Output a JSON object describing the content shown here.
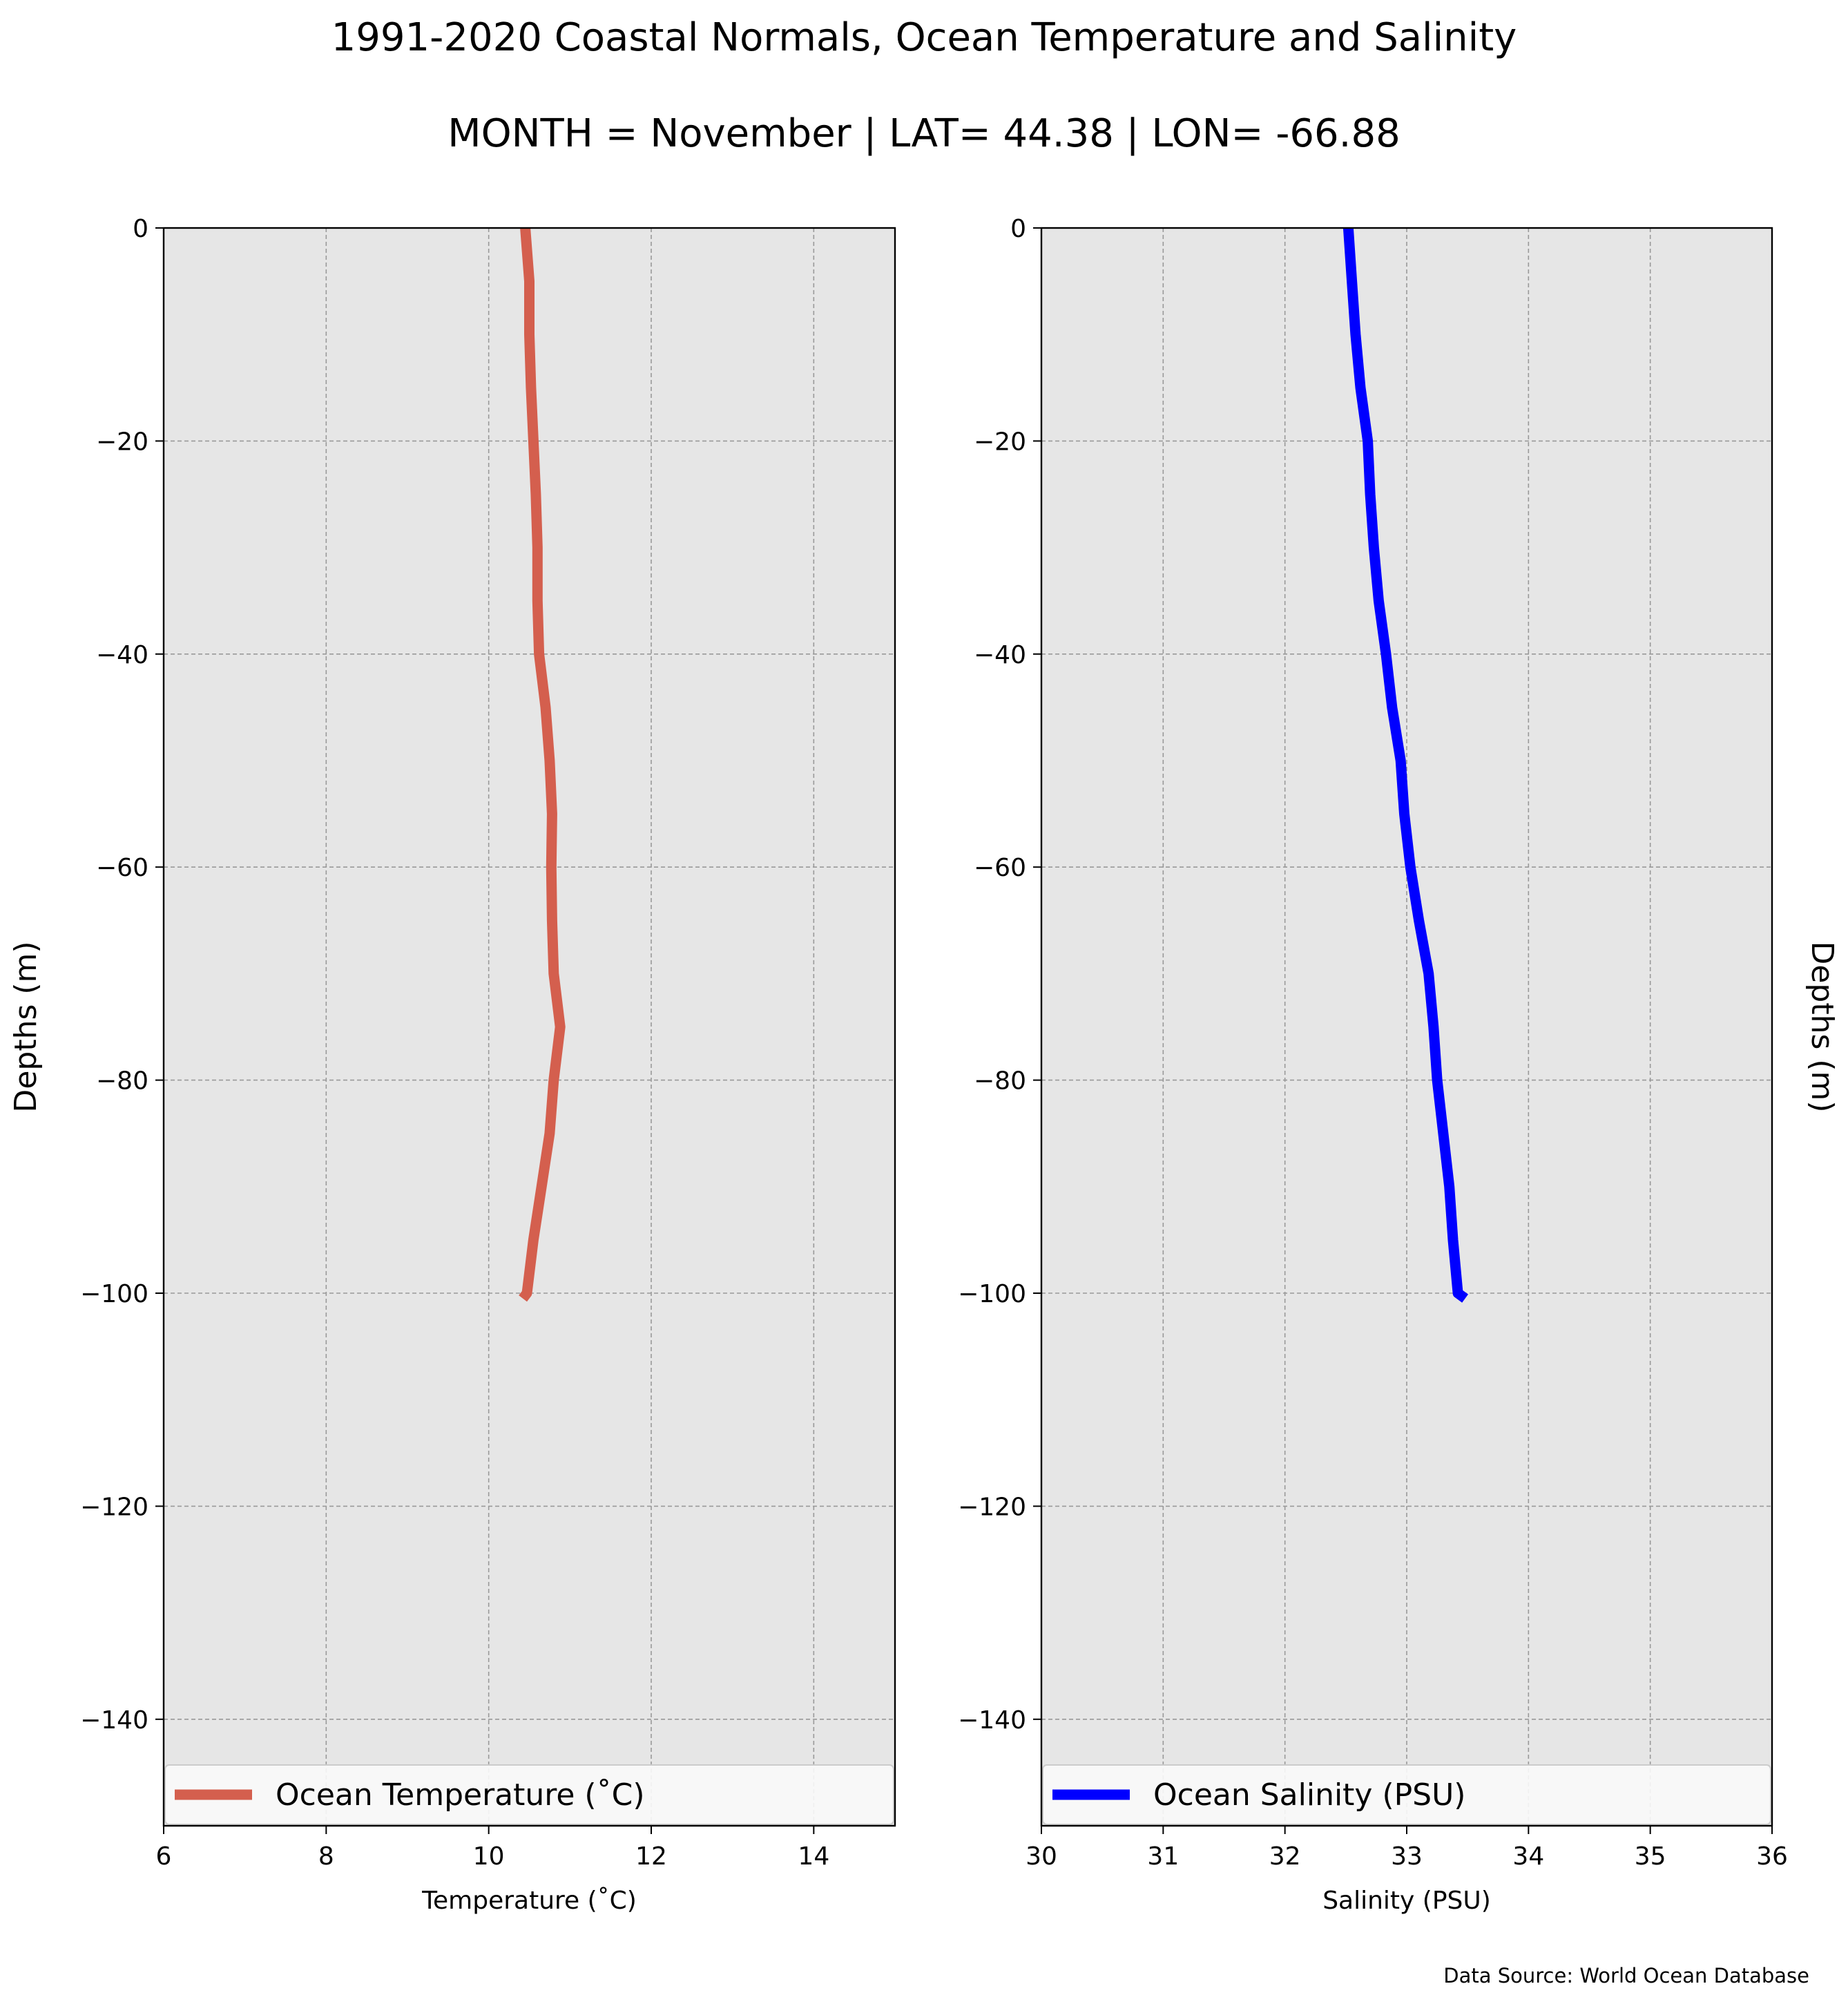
{
  "title": "1991-2020 Coastal Normals, Ocean Temperature and Salinity",
  "subtitle": "MONTH = November | LAT= 44.38 | LON= -66.88",
  "source_note": "Data Source: World Ocean Database",
  "colors": {
    "temperature": "#d45f4e",
    "salinity": "#0000ff",
    "plot_background": "#e6e6e6",
    "grid": "#999999"
  },
  "chart_data": [
    {
      "type": "line",
      "orientation": "vertical-profile",
      "xlabel": "Temperature ($^\\circ$C)",
      "xlabel_display": "Temperature (˚C)",
      "ylabel": "Depths (m)",
      "ylabel_position": "left",
      "xlim": [
        6,
        15
      ],
      "ylim": [
        -150,
        0
      ],
      "xticks": [
        "6",
        "8",
        "10",
        "12",
        "14"
      ],
      "yticks": [
        "0",
        "−20",
        "−40",
        "−60",
        "−80",
        "−100",
        "−120",
        "−140"
      ],
      "grid": true,
      "legend_location": "bottom",
      "series": [
        {
          "name": "Ocean Temperature (˚C)",
          "color": "#d45f4e",
          "x": [
            10.45,
            10.5,
            10.5,
            10.52,
            10.55,
            10.58,
            10.6,
            10.6,
            10.62,
            10.7,
            10.75,
            10.78,
            10.77,
            10.78,
            10.8,
            10.88,
            10.8,
            10.75,
            10.65,
            10.55,
            10.47,
            10.42
          ],
          "y": [
            0,
            -5,
            -10,
            -15,
            -20,
            -25,
            -30,
            -35,
            -40,
            -45,
            -50,
            -55,
            -60,
            -65,
            -70,
            -75,
            -80,
            -85,
            -90,
            -95,
            -100,
            -100.5
          ]
        }
      ]
    },
    {
      "type": "line",
      "orientation": "vertical-profile",
      "xlabel": "Salinity (PSU)",
      "ylabel": "Depths (m)",
      "ylabel_position": "right",
      "xlim": [
        30,
        36
      ],
      "ylim": [
        -150,
        0
      ],
      "xticks": [
        "30",
        "31",
        "32",
        "33",
        "34",
        "35",
        "36"
      ],
      "yticks": [
        "0",
        "−20",
        "−40",
        "−60",
        "−80",
        "−100",
        "−120",
        "−140"
      ],
      "grid": true,
      "legend_location": "bottom",
      "series": [
        {
          "name": "Ocean Salinity (PSU)",
          "color": "#0000ff",
          "x": [
            32.52,
            32.55,
            32.58,
            32.62,
            32.68,
            32.7,
            32.73,
            32.77,
            32.83,
            32.88,
            32.95,
            32.98,
            33.03,
            33.1,
            33.18,
            33.22,
            33.25,
            33.3,
            33.35,
            33.38,
            33.42,
            33.48
          ],
          "y": [
            0,
            -5,
            -10,
            -15,
            -20,
            -25,
            -30,
            -35,
            -40,
            -45,
            -50,
            -55,
            -60,
            -65,
            -70,
            -75,
            -80,
            -85,
            -90,
            -95,
            -100,
            -100.5
          ]
        }
      ]
    }
  ]
}
